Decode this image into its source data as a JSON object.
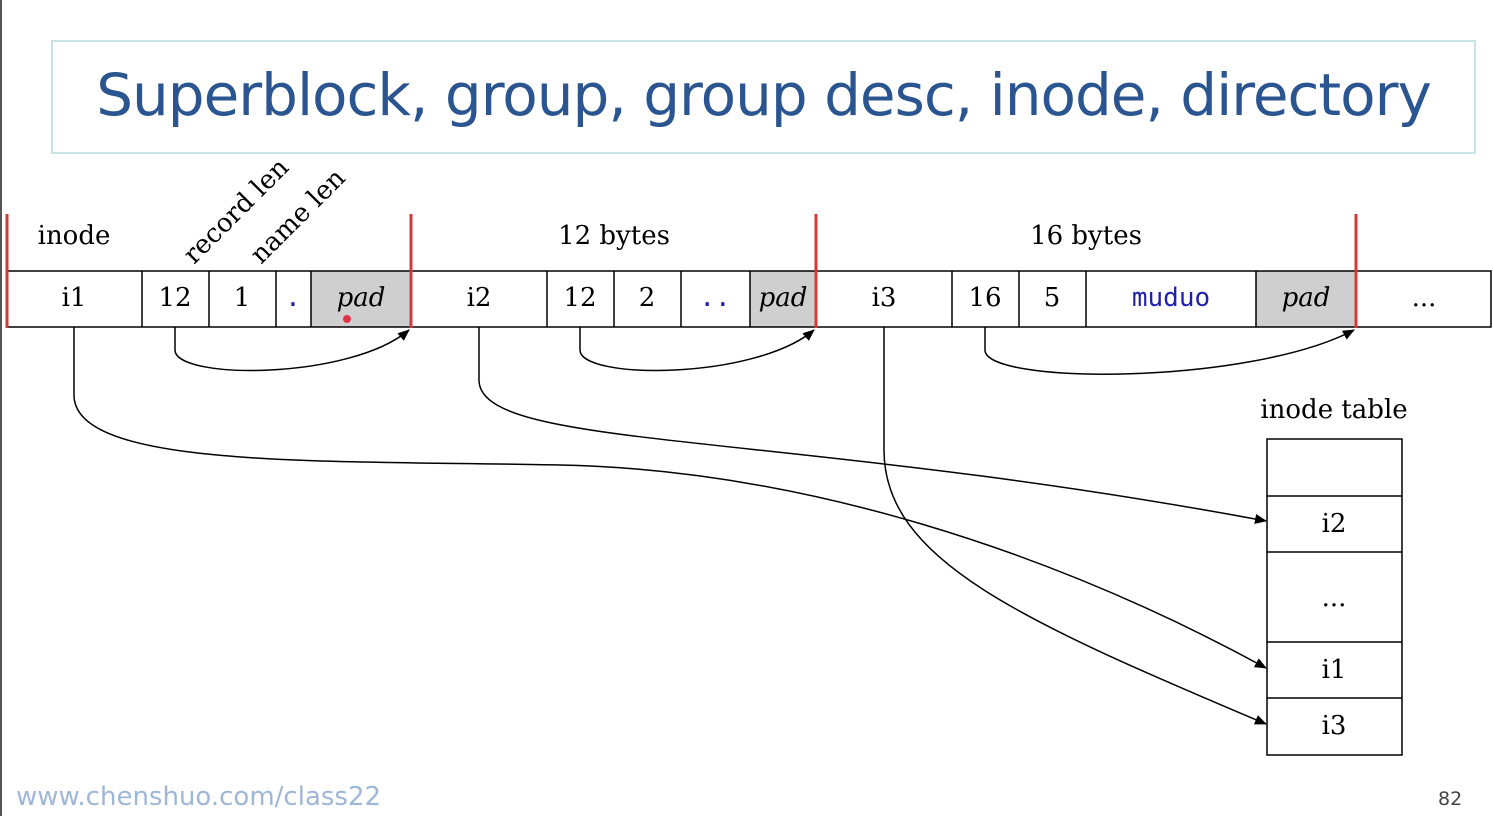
{
  "slide": {
    "title": "Superblock, group, group desc, inode, directory",
    "footer_url": "www.chenshuo.com/class22",
    "page_number": "82"
  },
  "diagram": {
    "header_labels": {
      "inode": "inode",
      "record_len": "record len",
      "name_len": "name len",
      "entry2_size": "12 bytes",
      "entry3_size": "16 bytes"
    },
    "cells": {
      "e1_inode": "i1",
      "e1_reclen": "12",
      "e1_namelen": "1",
      "e1_name": ".",
      "e1_pad": "pad",
      "e2_inode": "i2",
      "e2_reclen": "12",
      "e2_namelen": "2",
      "e2_name": "..",
      "e2_pad": "pad",
      "e3_inode": "i3",
      "e3_reclen": "16",
      "e3_namelen": "5",
      "e3_name": "muduo",
      "e3_pad": "pad",
      "rest": "..."
    },
    "inode_table": {
      "label": "inode table",
      "rows": [
        "",
        "i2",
        "...",
        "i1",
        "i3"
      ]
    },
    "colors": {
      "separator": "#d03a3a",
      "pad_fill": "#cfcfcf",
      "name_text": "#1f1fb0",
      "pointer": "#e0344a"
    }
  }
}
